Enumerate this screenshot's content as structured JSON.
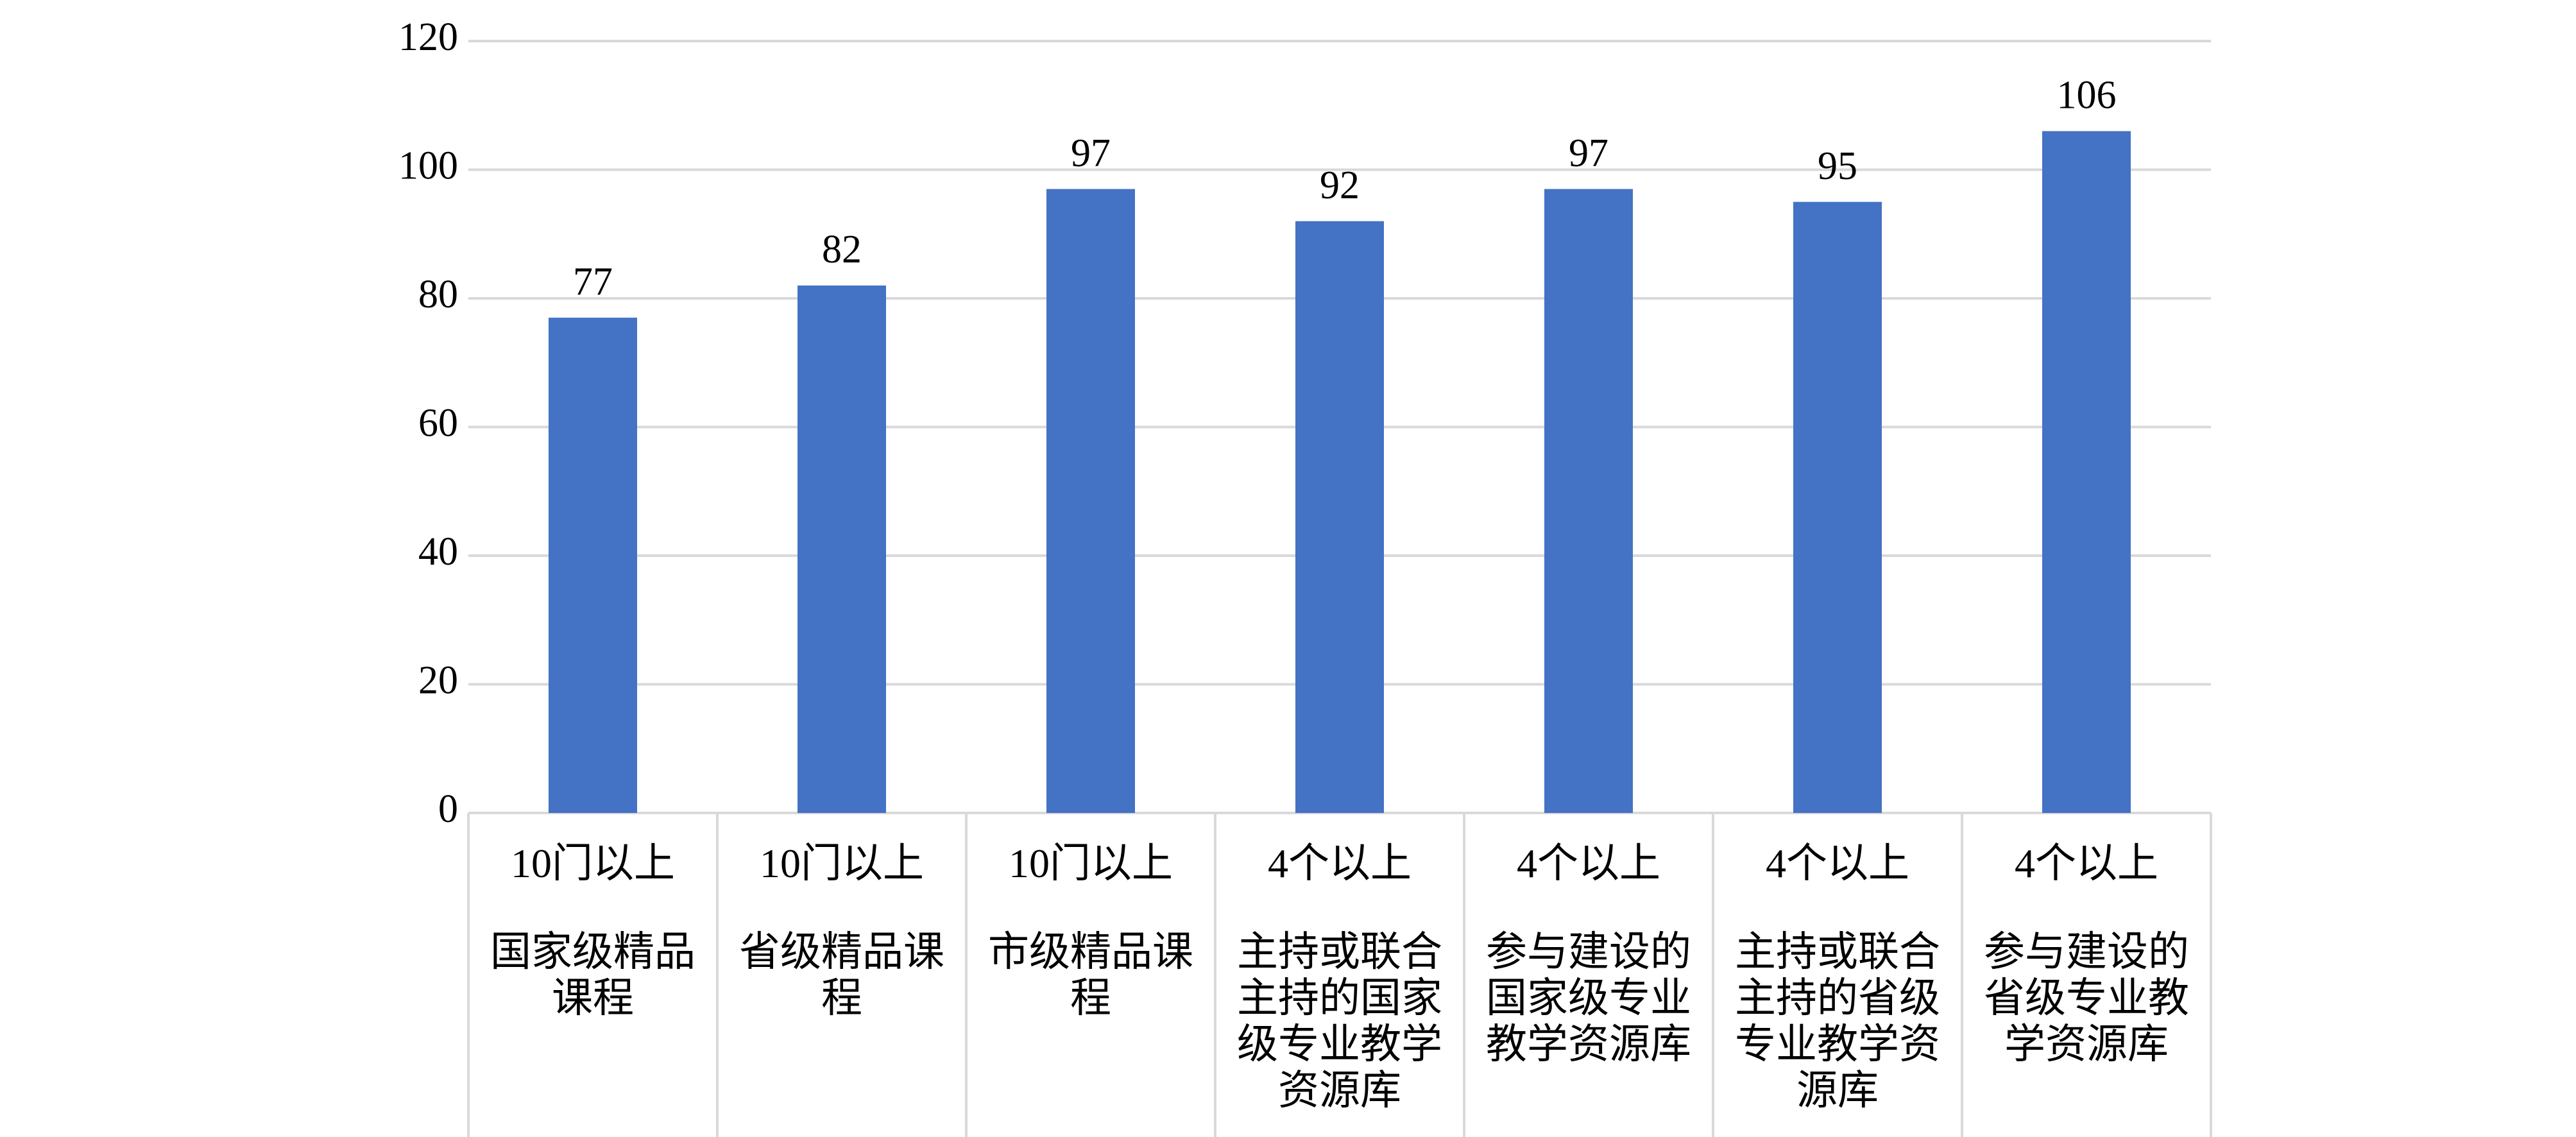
{
  "chart_data": {
    "type": "bar",
    "category_headers": [
      "10门以上",
      "10门以上",
      "10门以上",
      "4个以上",
      "4个以上",
      "4个以上",
      "4个以上"
    ],
    "categories": [
      "国家级精品课程",
      "省级精品课程",
      "市级精品课程",
      "主持或联合主持的国家级专业教学资源库",
      "参与建设的国家级专业教学资源库",
      "主持或联合主持的省级专业教学资源库",
      "参与建设的省级专业教学资源库"
    ],
    "values": [
      77,
      82,
      97,
      92,
      97,
      95,
      106
    ],
    "color": "#4472c4",
    "ylim": [
      0,
      120
    ],
    "yticks": [
      0,
      20,
      40,
      60,
      80,
      100,
      120
    ],
    "grid": true,
    "data_labels": true
  }
}
